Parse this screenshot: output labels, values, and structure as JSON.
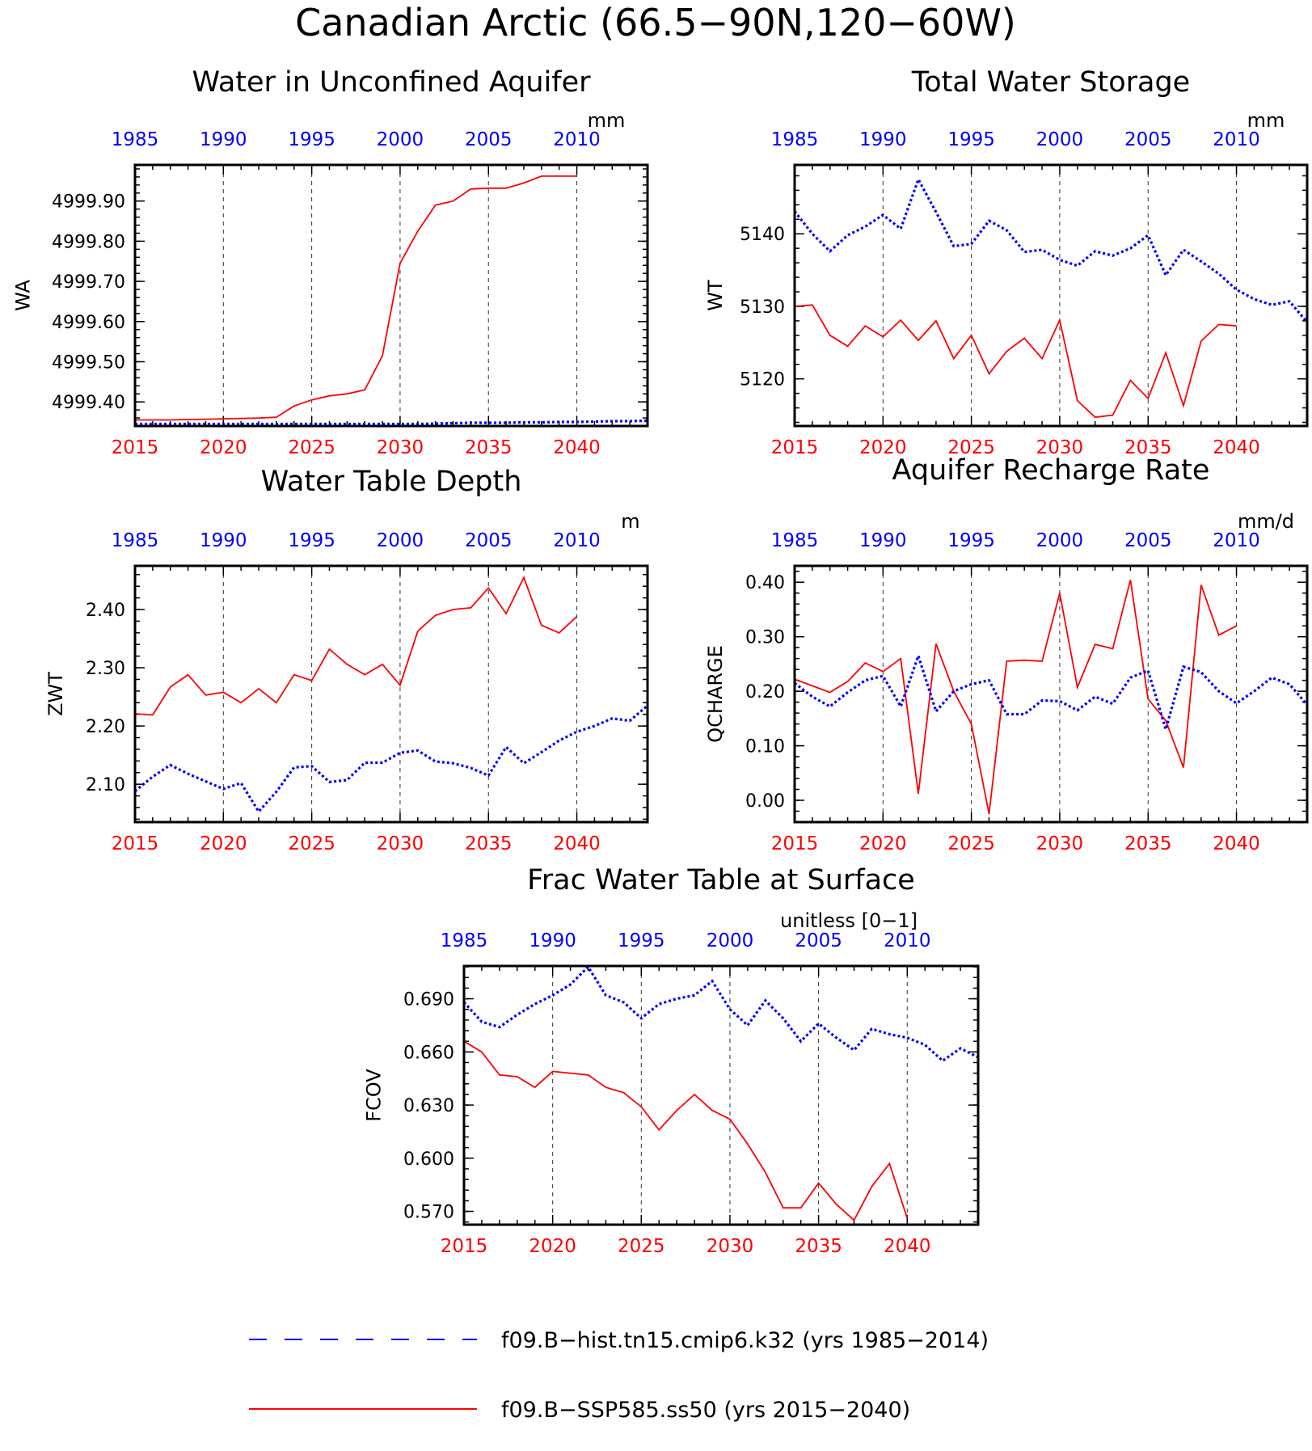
{
  "figure": {
    "title": "Canadian Arctic (66.5−90N,120−60W)"
  },
  "colors": {
    "hist": "#0000ff",
    "ssp": "#ff0000",
    "axis": "#000000"
  },
  "legend": {
    "hist_label": "f09.B−hist.tn15.cmip6.k32 (yrs 1985−2014)",
    "ssp_label": "f09.B−SSP585.ss50 (yrs 2015−2040)"
  },
  "chart_data": [
    {
      "type": "line",
      "title": "Water in Unconfined Aquifer",
      "ylabel": "WA",
      "units": "mm",
      "xlim_bottom": [
        2015,
        2044
      ],
      "xlim_top": [
        1985,
        2014
      ],
      "xticks_bottom": [
        "2015",
        "2020",
        "2025",
        "2030",
        "2035",
        "2040"
      ],
      "xticks_top": [
        "1985",
        "1990",
        "1995",
        "2000",
        "2005",
        "2010"
      ],
      "ylim": [
        4999.34,
        4999.99
      ],
      "yticks": [
        4999.4,
        4999.5,
        4999.6,
        4999.7,
        4999.8,
        4999.9
      ],
      "ytick_labels": [
        "4999.40",
        "4999.50",
        "4999.60",
        "4999.70",
        "4999.80",
        "4999.90"
      ],
      "series": [
        {
          "name": "f09.B−SSP585.ss50 (yrs 2015−2040)",
          "x": [
            2015,
            2016,
            2017,
            2018,
            2019,
            2020,
            2021,
            2022,
            2023,
            2024,
            2025,
            2026,
            2027,
            2028,
            2029,
            2030,
            2031,
            2032,
            2033,
            2034,
            2035,
            2036,
            2037,
            2038,
            2039,
            2040
          ],
          "values": [
            4999.355,
            4999.355,
            4999.355,
            4999.356,
            4999.357,
            4999.358,
            4999.359,
            4999.36,
            4999.362,
            4999.39,
            4999.405,
            4999.415,
            4999.42,
            4999.43,
            4999.515,
            4999.745,
            4999.825,
            4999.89,
            4999.9,
            4999.93,
            4999.932,
            4999.932,
            4999.945,
            4999.962,
            4999.962,
            4999.962
          ]
        },
        {
          "name": "f09.B−hist.tn15.cmip6.k32 (yrs 1985−2014)",
          "x": [
            1985,
            1986,
            1987,
            1988,
            1989,
            1990,
            1991,
            1992,
            1993,
            1994,
            1995,
            1996,
            1997,
            1998,
            1999,
            2000,
            2001,
            2002,
            2003,
            2004,
            2005,
            2006,
            2007,
            2008,
            2009,
            2010,
            2011,
            2012,
            2013,
            2014
          ],
          "values": [
            4999.345,
            4999.345,
            4999.345,
            4999.345,
            4999.345,
            4999.345,
            4999.345,
            4999.345,
            4999.345,
            4999.345,
            4999.345,
            4999.345,
            4999.345,
            4999.345,
            4999.345,
            4999.345,
            4999.345,
            4999.346,
            4999.347,
            4999.348,
            4999.348,
            4999.348,
            4999.349,
            4999.349,
            4999.35,
            4999.35,
            4999.351,
            4999.352,
            4999.352,
            4999.353
          ]
        }
      ]
    },
    {
      "type": "line",
      "title": "Total Water Storage",
      "ylabel": "WT",
      "units": "mm",
      "xlim_bottom": [
        2015,
        2044
      ],
      "xlim_top": [
        1985,
        2014
      ],
      "xticks_bottom": [
        "2015",
        "2020",
        "2025",
        "2030",
        "2035",
        "2040"
      ],
      "xticks_top": [
        "1985",
        "1990",
        "1995",
        "2000",
        "2005",
        "2010"
      ],
      "ylim": [
        5113.5,
        5149.5
      ],
      "yticks": [
        5120,
        5130,
        5140
      ],
      "ytick_labels": [
        "5120",
        "5130",
        "5140"
      ],
      "series": [
        {
          "name": "f09.B−SSP585.ss50 (yrs 2015−2040)",
          "x": [
            2015,
            2016,
            2017,
            2018,
            2019,
            2020,
            2021,
            2022,
            2023,
            2024,
            2025,
            2026,
            2027,
            2028,
            2029,
            2030,
            2031,
            2032,
            2033,
            2034,
            2035,
            2036,
            2037,
            2038,
            2039,
            2040
          ],
          "values": [
            5130,
            5130.2,
            5126,
            5124.5,
            5127.3,
            5125.8,
            5128.1,
            5125.3,
            5128,
            5122.8,
            5126,
            5120.7,
            5123.8,
            5125.6,
            5122.8,
            5128.1,
            5117,
            5114.7,
            5115,
            5119.8,
            5117.3,
            5123.6,
            5116.3,
            5125.2,
            5127.5,
            5127.3
          ]
        },
        {
          "name": "f09.B−hist.tn15.cmip6.k32 (yrs 1985−2014)",
          "x": [
            1985,
            1986,
            1987,
            1988,
            1989,
            1990,
            1991,
            1992,
            1993,
            1994,
            1995,
            1996,
            1997,
            1998,
            1999,
            2000,
            2001,
            2002,
            2003,
            2004,
            2005,
            2006,
            2007,
            2008,
            2009,
            2010,
            2011,
            2012,
            2013,
            2014
          ],
          "values": [
            5143.1,
            5140,
            5137.6,
            5139.8,
            5141,
            5142.6,
            5140.7,
            5147.5,
            5143,
            5138.3,
            5138.6,
            5141.8,
            5140.5,
            5137.5,
            5137.8,
            5136.4,
            5135.6,
            5137.6,
            5137,
            5138,
            5139.8,
            5134.3,
            5137.8,
            5136.2,
            5134.5,
            5132.3,
            5131,
            5130.2,
            5130.7,
            5127.8
          ]
        }
      ]
    },
    {
      "type": "line",
      "title": "Water Table Depth",
      "ylabel": "ZWT",
      "units": "m",
      "xlim_bottom": [
        2015,
        2044
      ],
      "xlim_top": [
        1985,
        2014
      ],
      "xticks_bottom": [
        "2015",
        "2020",
        "2025",
        "2030",
        "2035",
        "2040"
      ],
      "xticks_top": [
        "1985",
        "1990",
        "1995",
        "2000",
        "2005",
        "2010"
      ],
      "ylim": [
        2.035,
        2.475
      ],
      "yticks": [
        2.1,
        2.2,
        2.3,
        2.4
      ],
      "ytick_labels": [
        "2.10",
        "2.20",
        "2.30",
        "2.40"
      ],
      "series": [
        {
          "name": "f09.B−SSP585.ss50 (yrs 2015−2040)",
          "x": [
            2015,
            2016,
            2017,
            2018,
            2019,
            2020,
            2021,
            2022,
            2023,
            2024,
            2025,
            2026,
            2027,
            2028,
            2029,
            2030,
            2031,
            2032,
            2033,
            2034,
            2035,
            2036,
            2037,
            2038,
            2039,
            2040
          ],
          "values": [
            2.221,
            2.219,
            2.267,
            2.288,
            2.253,
            2.258,
            2.24,
            2.264,
            2.24,
            2.288,
            2.278,
            2.332,
            2.306,
            2.288,
            2.306,
            2.27,
            2.363,
            2.39,
            2.4,
            2.403,
            2.437,
            2.393,
            2.455,
            2.373,
            2.36,
            2.388
          ]
        },
        {
          "name": "f09.B−hist.tn15.cmip6.k32 (yrs 1985−2014)",
          "x": [
            1985,
            1986,
            1987,
            1988,
            1989,
            1990,
            1991,
            1992,
            1993,
            1994,
            1995,
            1996,
            1997,
            1998,
            1999,
            2000,
            2001,
            2002,
            2003,
            2004,
            2005,
            2006,
            2007,
            2008,
            2009,
            2010,
            2011,
            2012,
            2013,
            2014
          ],
          "values": [
            2.088,
            2.113,
            2.133,
            2.118,
            2.105,
            2.092,
            2.102,
            2.053,
            2.087,
            2.129,
            2.131,
            2.104,
            2.107,
            2.137,
            2.137,
            2.154,
            2.158,
            2.139,
            2.136,
            2.128,
            2.115,
            2.164,
            2.136,
            2.155,
            2.175,
            2.19,
            2.2,
            2.213,
            2.209,
            2.235
          ]
        }
      ]
    },
    {
      "type": "line",
      "title": "Aquifer Recharge Rate",
      "ylabel": "QCHARGE",
      "units": "mm/d",
      "xlim_bottom": [
        2015,
        2044
      ],
      "xlim_top": [
        1985,
        2014
      ],
      "xticks_bottom": [
        "2015",
        "2020",
        "2025",
        "2030",
        "2035",
        "2040"
      ],
      "xticks_top": [
        "1985",
        "1990",
        "1995",
        "2000",
        "2005",
        "2010"
      ],
      "ylim": [
        -0.04,
        0.43
      ],
      "yticks": [
        0.0,
        0.1,
        0.2,
        0.3,
        0.4
      ],
      "ytick_labels": [
        "0.00",
        "0.10",
        "0.20",
        "0.30",
        "0.40"
      ],
      "series": [
        {
          "name": "f09.B−SSP585.ss50 (yrs 2015−2040)",
          "x": [
            2015,
            2016,
            2017,
            2018,
            2019,
            2020,
            2021,
            2022,
            2023,
            2024,
            2025,
            2026,
            2027,
            2028,
            2029,
            2030,
            2031,
            2032,
            2033,
            2034,
            2035,
            2036,
            2037,
            2038,
            2039,
            2040
          ],
          "values": [
            0.222,
            0.21,
            0.198,
            0.218,
            0.252,
            0.236,
            0.26,
            0.012,
            0.287,
            0.2,
            0.14,
            -0.025,
            0.255,
            0.257,
            0.255,
            0.38,
            0.207,
            0.286,
            0.278,
            0.404,
            0.186,
            0.146,
            0.06,
            0.395,
            0.303,
            0.32
          ]
        },
        {
          "name": "f09.B−hist.tn15.cmip6.k32 (yrs 1985−2014)",
          "x": [
            1985,
            1986,
            1987,
            1988,
            1989,
            1990,
            1991,
            1992,
            1993,
            1994,
            1995,
            1996,
            1997,
            1998,
            1999,
            2000,
            2001,
            2002,
            2003,
            2004,
            2005,
            2006,
            2007,
            2008,
            2009,
            2010,
            2011,
            2012,
            2013,
            2014
          ],
          "values": [
            0.215,
            0.19,
            0.172,
            0.198,
            0.22,
            0.228,
            0.172,
            0.265,
            0.163,
            0.2,
            0.213,
            0.22,
            0.158,
            0.158,
            0.183,
            0.182,
            0.165,
            0.19,
            0.177,
            0.225,
            0.238,
            0.13,
            0.245,
            0.235,
            0.2,
            0.178,
            0.2,
            0.225,
            0.213,
            0.175
          ]
        }
      ]
    },
    {
      "type": "line",
      "title": "Frac Water Table at Surface",
      "ylabel": "FCOV",
      "units": "unitless [0−1]",
      "xlim_bottom": [
        2015,
        2044
      ],
      "xlim_top": [
        1985,
        2014
      ],
      "xticks_bottom": [
        "2015",
        "2020",
        "2025",
        "2030",
        "2035",
        "2040"
      ],
      "xticks_top": [
        "1985",
        "1990",
        "1995",
        "2000",
        "2005",
        "2010"
      ],
      "ylim": [
        0.5625,
        0.7085
      ],
      "yticks": [
        0.57,
        0.6,
        0.63,
        0.66,
        0.69
      ],
      "ytick_labels": [
        "0.570",
        "0.600",
        "0.630",
        "0.660",
        "0.690"
      ],
      "series": [
        {
          "name": "f09.B−SSP585.ss50 (yrs 2015−2040)",
          "x": [
            2015,
            2016,
            2017,
            2018,
            2019,
            2020,
            2021,
            2022,
            2023,
            2024,
            2025,
            2026,
            2027,
            2028,
            2029,
            2030,
            2031,
            2032,
            2033,
            2034,
            2035,
            2036,
            2037,
            2038,
            2039,
            2040
          ],
          "values": [
            0.666,
            0.66,
            0.647,
            0.646,
            0.64,
            0.649,
            0.648,
            0.647,
            0.64,
            0.637,
            0.629,
            0.616,
            0.627,
            0.636,
            0.627,
            0.622,
            0.608,
            0.592,
            0.572,
            0.572,
            0.586,
            0.574,
            0.565,
            0.584,
            0.597,
            0.566
          ]
        },
        {
          "name": "f09.B−hist.tn15.cmip6.k32 (yrs 1985−2014)",
          "x": [
            1985,
            1986,
            1987,
            1988,
            1989,
            1990,
            1991,
            1992,
            1993,
            1994,
            1995,
            1996,
            1997,
            1998,
            1999,
            2000,
            2001,
            2002,
            2003,
            2004,
            2005,
            2006,
            2007,
            2008,
            2009,
            2010,
            2011,
            2012,
            2013,
            2014
          ],
          "values": [
            0.688,
            0.677,
            0.674,
            0.681,
            0.687,
            0.692,
            0.698,
            0.708,
            0.692,
            0.688,
            0.679,
            0.687,
            0.69,
            0.692,
            0.7,
            0.684,
            0.675,
            0.689,
            0.679,
            0.666,
            0.676,
            0.668,
            0.661,
            0.673,
            0.67,
            0.668,
            0.664,
            0.655,
            0.662,
            0.657
          ]
        }
      ]
    }
  ]
}
